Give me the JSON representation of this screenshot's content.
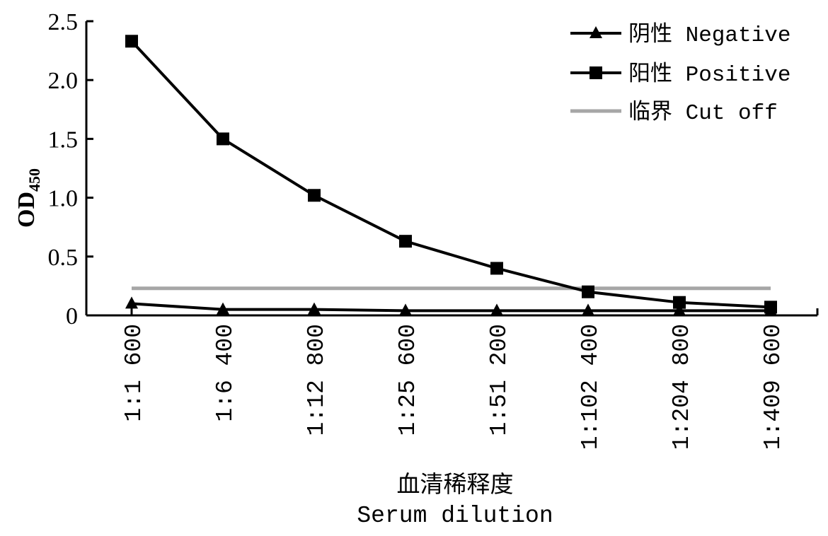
{
  "chart_data": {
    "type": "line",
    "title": "",
    "ylabel": "OD",
    "ylabel_subscript": "450",
    "xlabel_cn": "血清稀释度",
    "xlabel_en": "Serum dilution",
    "ylim": [
      0,
      2.5
    ],
    "yticks": [
      {
        "value": 0,
        "label": "0"
      },
      {
        "value": 0.5,
        "label": "0.5"
      },
      {
        "value": 1.0,
        "label": "1.0"
      },
      {
        "value": 1.5,
        "label": "1.5"
      },
      {
        "value": 2.0,
        "label": "2.0"
      },
      {
        "value": 2.5,
        "label": "2.5"
      }
    ],
    "categories": [
      "1:1 600",
      "1:6 400",
      "1:12 800",
      "1:25 600",
      "1:51 200",
      "1:102 400",
      "1:204 800",
      "1:409 600"
    ],
    "series": [
      {
        "name": "阴性 Negative",
        "marker": "triangle",
        "color": "#000000",
        "values": [
          0.1,
          0.05,
          0.05,
          0.04,
          0.04,
          0.04,
          0.04,
          0.04
        ]
      },
      {
        "name": "阳性 Positive",
        "marker": "square",
        "color": "#000000",
        "values": [
          2.33,
          1.5,
          1.02,
          0.63,
          0.4,
          0.2,
          0.11,
          0.07
        ]
      },
      {
        "name": "临界 Cut off",
        "marker": "none",
        "color": "#a6a6a6",
        "values": [
          0.23,
          0.23,
          0.23,
          0.23,
          0.23,
          0.23,
          0.23,
          0.23
        ]
      }
    ],
    "grid": false,
    "legend_position": "top-right"
  }
}
